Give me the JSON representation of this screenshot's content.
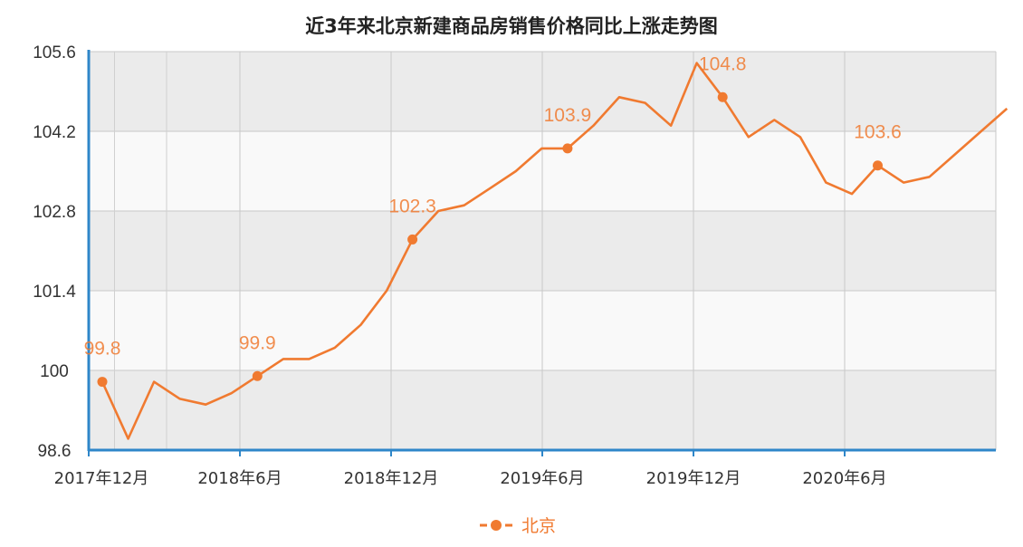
{
  "chart_data": {
    "type": "line",
    "title": "近3年来北京新建商品房销售价格同比上涨走势图",
    "xlabel": "",
    "ylabel": "",
    "ylim": [
      98.6,
      105.6
    ],
    "yticks": [
      "98.6",
      "100",
      "101.4",
      "102.8",
      "104.2",
      "105.6"
    ],
    "x": [
      "2017-12",
      "2018-01",
      "2018-02",
      "2018-03",
      "2018-04",
      "2018-05",
      "2018-06",
      "2018-07",
      "2018-08",
      "2018-09",
      "2018-10",
      "2018-11",
      "2018-12",
      "2019-01",
      "2019-02",
      "2019-03",
      "2019-04",
      "2019-05",
      "2019-06",
      "2019-07",
      "2019-08",
      "2019-09",
      "2019-10",
      "2019-11",
      "2019-12",
      "2020-01",
      "2020-02",
      "2020-03",
      "2020-04",
      "2020-05",
      "2020-06",
      "2020-07",
      "2020-08",
      "2020-09",
      "2020-10",
      "2020-11"
    ],
    "xtick_labels": [
      {
        "index": 0,
        "label": "2017年12月"
      },
      {
        "index": 6,
        "label": "2018年6月"
      },
      {
        "index": 12,
        "label": "2018年12月"
      },
      {
        "index": 18,
        "label": "2019年6月"
      },
      {
        "index": 24,
        "label": "2019年12月"
      },
      {
        "index": 30,
        "label": "2020年6月"
      }
    ],
    "series": [
      {
        "name": "北京",
        "color": "#f07a30",
        "values": [
          99.8,
          98.8,
          99.8,
          99.5,
          99.4,
          99.6,
          99.9,
          100.2,
          100.2,
          100.4,
          100.8,
          101.4,
          102.3,
          102.8,
          102.9,
          103.2,
          103.5,
          103.9,
          103.9,
          104.3,
          104.8,
          104.7,
          104.3,
          105.4,
          104.8,
          104.1,
          104.4,
          104.1,
          103.3,
          103.1,
          103.6,
          103.3,
          103.4,
          103.8,
          104.2,
          104.6
        ],
        "labeled_points": [
          {
            "index": 0,
            "label": "99.8"
          },
          {
            "index": 6,
            "label": "99.9"
          },
          {
            "index": 12,
            "label": "102.3"
          },
          {
            "index": 18,
            "label": "103.9"
          },
          {
            "index": 24,
            "label": "104.8"
          },
          {
            "index": 30,
            "label": "103.6"
          }
        ]
      }
    ],
    "grid": true,
    "legend": "bottom-center"
  }
}
